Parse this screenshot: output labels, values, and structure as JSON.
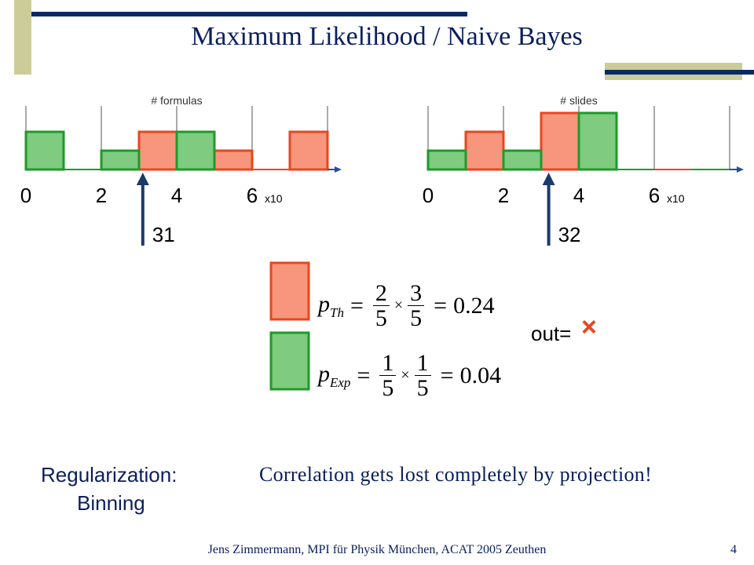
{
  "title": "Maximum Likelihood / Naive Bayes",
  "histograms": [
    {
      "label": "# formulas",
      "unit": "x10",
      "xlim": [
        0,
        80
      ],
      "xticks": [
        0,
        {
          "value": 20,
          "label": "2"
        },
        {
          "value": 40,
          "label": "4"
        },
        {
          "value": 60,
          "label": "6"
        }
      ],
      "bins": [
        0,
        10,
        20,
        30,
        40,
        50,
        60,
        70,
        80
      ],
      "series": [
        {
          "color": "#e8461e",
          "fill": "#f7967c",
          "values": [
            0,
            0,
            0,
            2,
            0,
            1,
            0,
            2
          ]
        },
        {
          "color": "#1f9a2a",
          "fill": "#7fcb7f",
          "values": [
            2,
            0,
            1,
            0,
            2,
            0,
            0,
            0
          ]
        }
      ],
      "marker": 31
    },
    {
      "label": "# slides",
      "unit": "x10",
      "xlim": [
        0,
        80
      ],
      "xticks": [
        0,
        {
          "value": 20,
          "label": "2"
        },
        {
          "value": 40,
          "label": "4"
        },
        {
          "value": 60,
          "label": "6"
        }
      ],
      "bins": [
        0,
        10,
        20,
        30,
        40,
        50,
        60,
        70,
        80
      ],
      "series": [
        {
          "color": "#e8461e",
          "fill": "#f7967c",
          "values": [
            0,
            2,
            0,
            3,
            0,
            0,
            0,
            0
          ]
        },
        {
          "color": "#1f9a2a",
          "fill": "#7fcb7f",
          "values": [
            1,
            0,
            1,
            0,
            3,
            0,
            0,
            0
          ]
        }
      ],
      "marker": 32
    }
  ],
  "formulas": [
    {
      "symbol": "p",
      "sub": "Th",
      "terms": [
        [
          2,
          5
        ],
        [
          3,
          5
        ]
      ],
      "result": 0.24
    },
    {
      "symbol": "p",
      "sub": "Exp",
      "terms": [
        [
          1,
          5
        ],
        [
          1,
          5
        ]
      ],
      "result": 0.04
    }
  ],
  "out_label": "out=",
  "out_symbol": "×",
  "left_note": [
    "Regularization:",
    "Binning"
  ],
  "right_note": "Correlation gets lost completely by projection!",
  "footer": "Jens Zimmermann, MPI für Physik München, ACAT 2005 Zeuthen",
  "page": 4
}
